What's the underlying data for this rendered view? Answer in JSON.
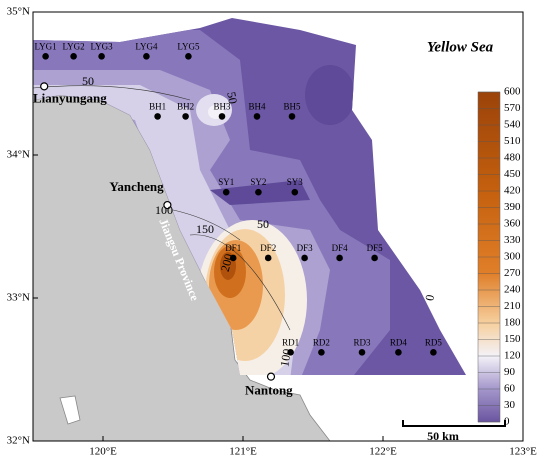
{
  "title": "Yellow Sea",
  "axes": {
    "xlim": [
      119.5,
      123
    ],
    "ylim": [
      32,
      35
    ],
    "xticks": [
      {
        "value": 120,
        "label": "120°E"
      },
      {
        "value": 121,
        "label": "121°E"
      },
      {
        "value": 122,
        "label": "122°E"
      },
      {
        "value": 123,
        "label": "123°E"
      }
    ],
    "yticks": [
      {
        "value": 32,
        "label": "32°N"
      },
      {
        "value": 33,
        "label": "33°N"
      },
      {
        "value": 34,
        "label": "34°N"
      },
      {
        "value": 35,
        "label": "35°N"
      }
    ]
  },
  "stations": [
    {
      "name": "LYG1",
      "lon": 119.59,
      "lat": 34.69
    },
    {
      "name": "LYG2",
      "lon": 119.79,
      "lat": 34.69
    },
    {
      "name": "LYG3",
      "lon": 119.99,
      "lat": 34.69
    },
    {
      "name": "LYG4",
      "lon": 120.31,
      "lat": 34.69
    },
    {
      "name": "LYG5",
      "lon": 120.61,
      "lat": 34.69
    },
    {
      "name": "BH1",
      "lon": 120.39,
      "lat": 34.27
    },
    {
      "name": "BH2",
      "lon": 120.59,
      "lat": 34.27
    },
    {
      "name": "BH3",
      "lon": 120.85,
      "lat": 34.27
    },
    {
      "name": "BH4",
      "lon": 121.1,
      "lat": 34.27
    },
    {
      "name": "BH5",
      "lon": 121.35,
      "lat": 34.27
    },
    {
      "name": "SY1",
      "lon": 120.88,
      "lat": 33.74
    },
    {
      "name": "SY2",
      "lon": 121.11,
      "lat": 33.74
    },
    {
      "name": "SY3",
      "lon": 121.37,
      "lat": 33.74
    },
    {
      "name": "DF1",
      "lon": 120.93,
      "lat": 33.28
    },
    {
      "name": "DF2",
      "lon": 121.18,
      "lat": 33.28
    },
    {
      "name": "DF3",
      "lon": 121.44,
      "lat": 33.28
    },
    {
      "name": "DF4",
      "lon": 121.69,
      "lat": 33.28
    },
    {
      "name": "DF5",
      "lon": 121.94,
      "lat": 33.28
    },
    {
      "name": "RD1",
      "lon": 121.34,
      "lat": 32.62
    },
    {
      "name": "RD2",
      "lon": 121.56,
      "lat": 32.62
    },
    {
      "name": "RD3",
      "lon": 121.85,
      "lat": 32.62
    },
    {
      "name": "RD4",
      "lon": 122.11,
      "lat": 32.62
    },
    {
      "name": "RD5",
      "lon": 122.36,
      "lat": 32.62
    }
  ],
  "cities": [
    {
      "name": "Lianyungang",
      "lon": 119.58,
      "lat": 34.48
    },
    {
      "name": "Yancheng",
      "lon": 120.46,
      "lat": 33.65
    },
    {
      "name": "Nantong",
      "lon": 121.2,
      "lat": 32.45
    }
  ],
  "region_label": "Jiangsu Province",
  "contour_labels": [
    50,
    50,
    100,
    150,
    50,
    200,
    100,
    0
  ],
  "colorbar": {
    "range": [
      0,
      600
    ],
    "ticks": [
      0,
      30,
      60,
      90,
      120,
      150,
      180,
      210,
      240,
      270,
      300,
      330,
      360,
      390,
      420,
      450,
      480,
      510,
      540,
      570,
      600
    ]
  },
  "scale_bar": "50 km"
}
